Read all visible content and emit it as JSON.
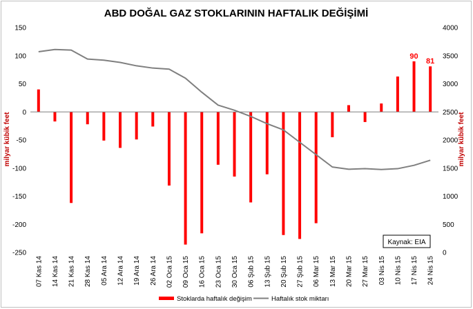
{
  "chart_data": {
    "type": "bar+line",
    "title": "ABD DOĞAL GAZ STOKLARININ HAFTALIK DEĞİŞİMİ",
    "ylabel_left": "milyar kübik feet",
    "ylabel_right": "milyar kübik feet",
    "source": "Kaynak: EIA",
    "categories": [
      "07 Kas 14",
      "14 Kas 14",
      "21 Kas 14",
      "28 Kas 14",
      "05 Ara 14",
      "12 Ara 14",
      "19 Ara 14",
      "26 Ara 14",
      "02 Oca 15",
      "09 Oca 15",
      "16 Oca 15",
      "23 Oca 15",
      "30 Oca 15",
      "06 Şub 15",
      "13 Şub 15",
      "20 Şub 15",
      "27 Şub 15",
      "06 Mar 15",
      "13 Mar 15",
      "20 Mar 15",
      "27 Mar 15",
      "03 Nis 15",
      "10 Nis 15",
      "17 Nis 15",
      "24 Nis 15"
    ],
    "left_axis": {
      "min": -250,
      "max": 150,
      "step": 50,
      "ticks": [
        "150",
        "100",
        "50",
        "0",
        "-50",
        "-100",
        "-150",
        "-200",
        "-250"
      ]
    },
    "right_axis": {
      "min": 0,
      "max": 4000,
      "step": 500,
      "ticks": [
        "4000",
        "3500",
        "3000",
        "2500",
        "2000",
        "1500",
        "1000",
        "500",
        "0"
      ]
    },
    "series": [
      {
        "name": "Stoklarda haftalık değişim",
        "type": "bar",
        "axis": "left",
        "color": "#ff0000",
        "values": [
          40,
          -17,
          -162,
          -22,
          -51,
          -64,
          -49,
          -26,
          -131,
          -236,
          -216,
          -94,
          -115,
          -161,
          -111,
          -219,
          -226,
          -198,
          -45,
          12,
          -18,
          15,
          63,
          90,
          81
        ]
      },
      {
        "name": "Haftalık stok miktarı",
        "type": "line",
        "axis": "right",
        "color": "#7f7f7f",
        "values": [
          3571,
          3610,
          3600,
          3440,
          3420,
          3380,
          3320,
          3280,
          3260,
          3100,
          2850,
          2620,
          2530,
          2420,
          2290,
          2180,
          1960,
          1740,
          1520,
          1480,
          1490,
          1475,
          1490,
          1550,
          1640
        ]
      }
    ],
    "annotations": [
      {
        "category": "17 Nis 15",
        "value": 90,
        "label": "90"
      },
      {
        "category": "24 Nis 15",
        "value": 81,
        "label": "81"
      }
    ],
    "legend": {
      "position": "bottom"
    },
    "grid": false
  }
}
